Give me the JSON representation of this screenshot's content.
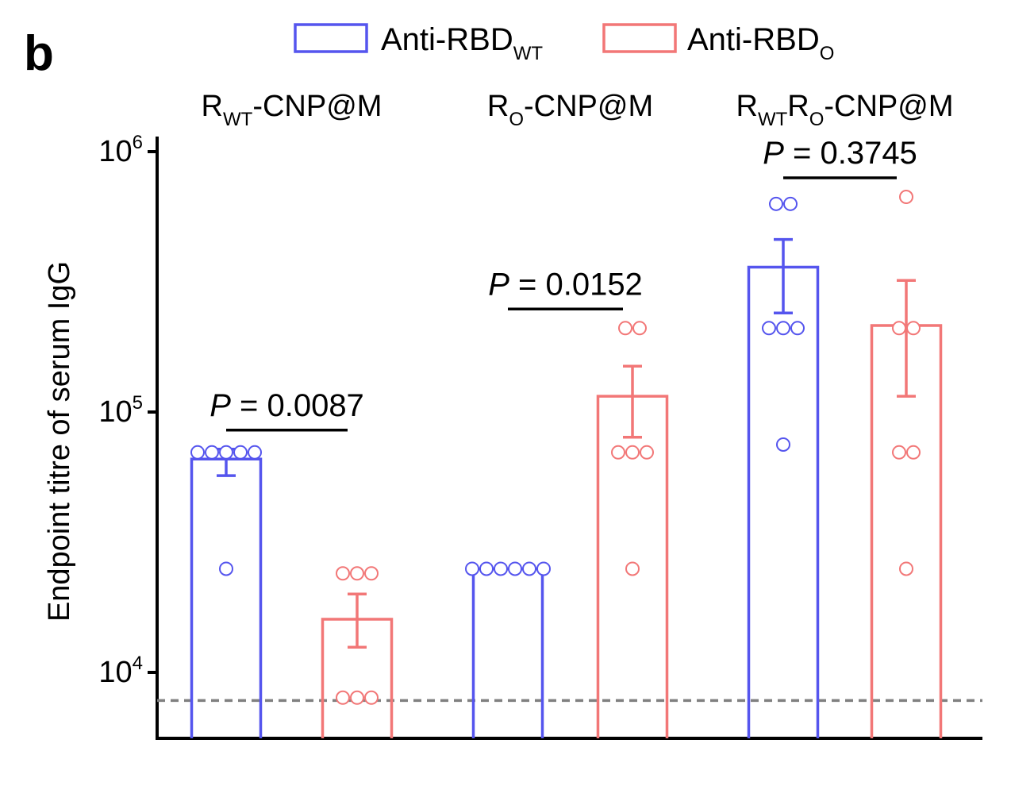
{
  "panel_label": "b",
  "chart_data": {
    "type": "bar",
    "yscale": "log",
    "ylim": [
      5600,
      1150000
    ],
    "ylabel": "Endpoint titre of serum IgG",
    "yticks": [
      {
        "base": "10",
        "exp": "4",
        "value": 10000
      },
      {
        "base": "10",
        "exp": "5",
        "value": 100000
      },
      {
        "base": "10",
        "exp": "6",
        "value": 1000000
      }
    ],
    "detection_limit": 7800,
    "colors": {
      "wt": "#5555ee",
      "o": "#f27777",
      "axis": "#000000",
      "limit": "#808080"
    },
    "legend": [
      {
        "main": "Anti-RBD",
        "sub": "WT",
        "color_key": "wt"
      },
      {
        "main": "Anti-RBD",
        "sub": "O",
        "color_key": "o"
      }
    ],
    "groups": [
      {
        "label_parts": [
          {
            "t": "R"
          },
          {
            "t": "WT",
            "s": true
          },
          {
            "t": "-CNP@M"
          }
        ],
        "bars": [
          {
            "series": "wt",
            "mean": 66000,
            "err_low": 57000,
            "err_high": 72000,
            "points": [
              70000,
              70000,
              70000,
              70000,
              70000,
              25000
            ]
          },
          {
            "series": "o",
            "mean": 16000,
            "err_low": 12500,
            "err_high": 20000,
            "points": [
              24000,
              24000,
              24000,
              8000,
              8000,
              8000
            ]
          }
        ],
        "comparison": {
          "p_label": "P",
          "p_value": " = 0.0087"
        }
      },
      {
        "label_parts": [
          {
            "t": "R"
          },
          {
            "t": "O",
            "s": true
          },
          {
            "t": "-CNP@M"
          }
        ],
        "bars": [
          {
            "series": "wt",
            "mean": 25000,
            "err_low": 25000,
            "err_high": 25000,
            "points": [
              25000,
              25000,
              25000,
              25000,
              25000,
              25000
            ]
          },
          {
            "series": "o",
            "mean": 115000,
            "err_low": 80000,
            "err_high": 150000,
            "points": [
              210000,
              210000,
              70000,
              70000,
              70000,
              25000
            ]
          }
        ],
        "comparison": {
          "p_label": "P",
          "p_value": " = 0.0152"
        }
      },
      {
        "label_parts": [
          {
            "t": "R"
          },
          {
            "t": "WT",
            "s": true
          },
          {
            "t": "R"
          },
          {
            "t": "O",
            "s": true
          },
          {
            "t": "-CNP@M"
          }
        ],
        "bars": [
          {
            "series": "wt",
            "mean": 360000,
            "err_low": 240000,
            "err_high": 460000,
            "points": [
              630000,
              630000,
              210000,
              210000,
              210000,
              75000
            ]
          },
          {
            "series": "o",
            "mean": 215000,
            "err_low": 115000,
            "err_high": 320000,
            "points": [
              670000,
              210000,
              210000,
              70000,
              70000,
              25000
            ]
          }
        ],
        "comparison": {
          "p_label": "P",
          "p_value": " = 0.3745"
        }
      }
    ]
  }
}
